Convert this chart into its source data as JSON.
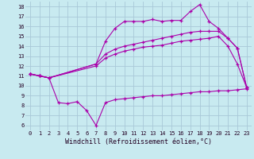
{
  "background_color": "#c8eaf0",
  "grid_color": "#a8c8d8",
  "line_color": "#aa00aa",
  "xlabel": "Windchill (Refroidissement éolien,°C)",
  "xlabel_fontsize": 6.0,
  "tick_fontsize": 5.0,
  "ylabel_values": [
    6,
    7,
    8,
    9,
    10,
    11,
    12,
    13,
    14,
    15,
    16,
    17,
    18
  ],
  "xlabel_values": [
    0,
    1,
    2,
    3,
    4,
    5,
    6,
    7,
    8,
    9,
    10,
    11,
    12,
    13,
    14,
    15,
    16,
    17,
    18,
    19,
    20,
    21,
    22,
    23
  ],
  "xlim": [
    -0.5,
    23.5
  ],
  "ylim": [
    5.5,
    18.5
  ],
  "series": [
    {
      "x": [
        0,
        1,
        2,
        3,
        4,
        5,
        6,
        7,
        8,
        9,
        10,
        11,
        12,
        13,
        14,
        15,
        16,
        17,
        18,
        19,
        20,
        21,
        22,
        23
      ],
      "y": [
        11.2,
        11.0,
        10.8,
        8.3,
        8.2,
        8.4,
        7.5,
        6.0,
        8.3,
        8.6,
        8.7,
        8.8,
        8.9,
        9.0,
        9.0,
        9.1,
        9.2,
        9.3,
        9.4,
        9.4,
        9.5,
        9.5,
        9.6,
        9.7
      ]
    },
    {
      "x": [
        0,
        1,
        2,
        7,
        8,
        9,
        10,
        11,
        12,
        13,
        14,
        15,
        16,
        17,
        18,
        19,
        20,
        21,
        22,
        23
      ],
      "y": [
        11.2,
        11.0,
        10.8,
        12.0,
        12.8,
        13.2,
        13.5,
        13.7,
        13.9,
        14.0,
        14.1,
        14.3,
        14.5,
        14.6,
        14.7,
        14.8,
        15.0,
        14.0,
        12.2,
        9.8
      ]
    },
    {
      "x": [
        0,
        1,
        2,
        7,
        8,
        9,
        10,
        11,
        12,
        13,
        14,
        15,
        16,
        17,
        18,
        19,
        20,
        21,
        22,
        23
      ],
      "y": [
        11.2,
        11.0,
        10.8,
        12.2,
        13.2,
        13.7,
        14.0,
        14.2,
        14.4,
        14.6,
        14.8,
        15.0,
        15.2,
        15.4,
        15.5,
        15.5,
        15.5,
        14.8,
        13.8,
        9.8
      ]
    },
    {
      "x": [
        0,
        1,
        2,
        7,
        8,
        9,
        10,
        11,
        12,
        13,
        14,
        15,
        16,
        17,
        18,
        19,
        20,
        21,
        22,
        23
      ],
      "y": [
        11.2,
        11.0,
        10.8,
        12.2,
        14.5,
        15.8,
        16.5,
        16.5,
        16.5,
        16.7,
        16.5,
        16.6,
        16.6,
        17.5,
        18.2,
        16.5,
        15.8,
        14.8,
        13.8,
        9.8
      ]
    }
  ]
}
